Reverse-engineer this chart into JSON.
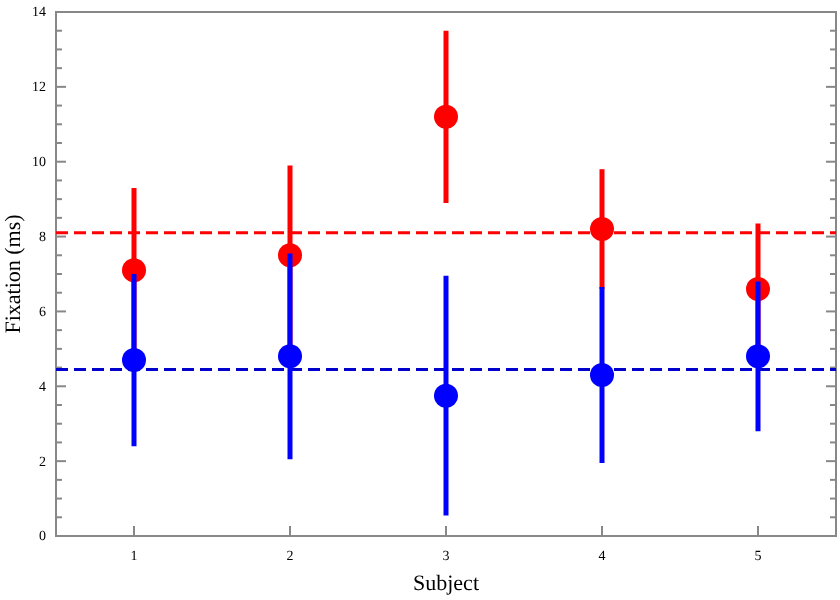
{
  "chart_data": {
    "type": "scatter",
    "xlabel": "Subject",
    "ylabel": "Fixation (ms)",
    "x": [
      1,
      2,
      3,
      4,
      5
    ],
    "xlim": [
      0.5,
      5.5
    ],
    "xticks": [
      1,
      2,
      3,
      4,
      5
    ],
    "ylim": [
      0,
      14
    ],
    "yticks": [
      0,
      {
        "value": 0.5,
        "label": null
      },
      {
        "value": 1,
        "label": null
      },
      {
        "value": 1.5,
        "label": null
      },
      2,
      {
        "value": 2.5,
        "label": null
      },
      {
        "value": 3,
        "label": null
      },
      {
        "value": 3.5,
        "label": null
      },
      4,
      {
        "value": 4.5,
        "label": null
      },
      {
        "value": 5,
        "label": null
      },
      {
        "value": 5.5,
        "label": null
      },
      6,
      {
        "value": 6.5,
        "label": null
      },
      {
        "value": 7,
        "label": null
      },
      {
        "value": 7.5,
        "label": null
      },
      8,
      {
        "value": 8.5,
        "label": null
      },
      {
        "value": 9,
        "label": null
      },
      {
        "value": 9.5,
        "label": null
      },
      10,
      {
        "value": 10.5,
        "label": null
      },
      {
        "value": 11,
        "label": null
      },
      {
        "value": 11.5,
        "label": null
      },
      12,
      {
        "value": 12.5,
        "label": null
      },
      {
        "value": 13,
        "label": null
      },
      {
        "value": 13.5,
        "label": null
      },
      14
    ],
    "grid": false,
    "marker": "circle",
    "series": [
      {
        "color": "#ff0000",
        "values": [
          7.1,
          7.5,
          11.2,
          8.2,
          6.6
        ],
        "errors": [
          2.2,
          2.4,
          2.3,
          1.6,
          1.75
        ]
      },
      {
        "color": "#0000ff",
        "values": [
          4.7,
          4.8,
          3.75,
          4.3,
          4.8
        ],
        "errors": [
          2.3,
          2.75,
          3.2,
          2.35,
          2.0
        ]
      }
    ],
    "ref_lines": [
      {
        "axis": "y",
        "value": 8.1,
        "color": "#ff0000",
        "line_style": "dashed"
      },
      {
        "axis": "y",
        "value": 4.45,
        "color": "#0000cc",
        "line_style": "dashed"
      }
    ]
  }
}
